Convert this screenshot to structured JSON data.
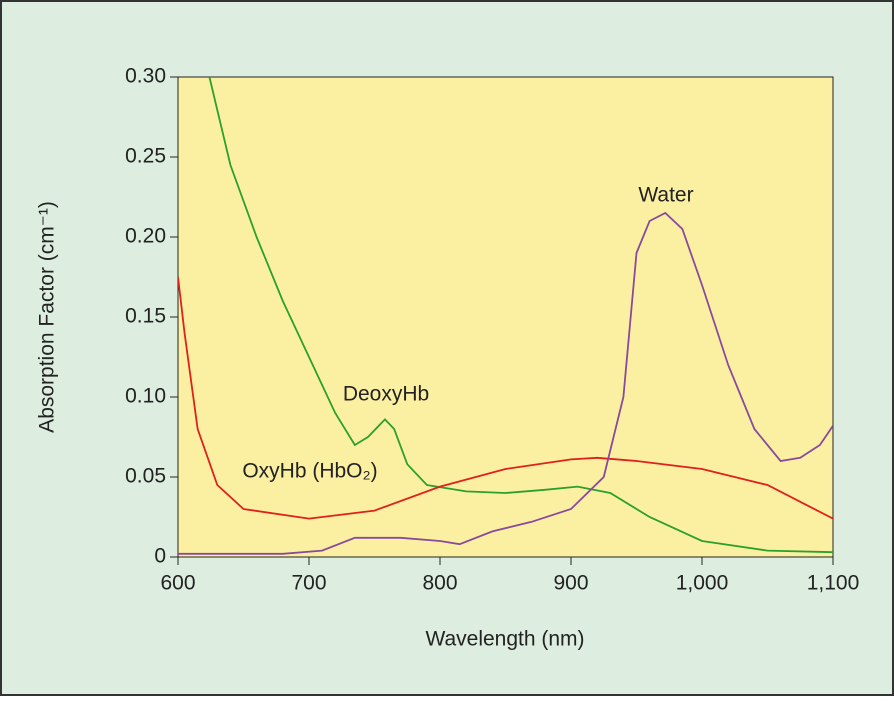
{
  "chart_data": {
    "type": "line",
    "xlabel": "Wavelength (nm)",
    "ylabel": "Absorption Factor (cm⁻¹)",
    "xlim": [
      600,
      1100
    ],
    "ylim": [
      0,
      0.3
    ],
    "xticks": [
      600,
      700,
      800,
      900,
      {
        "value": 1000,
        "label": "1,000"
      },
      {
        "value": 1100,
        "label": "1,100"
      }
    ],
    "yticks": [
      0,
      0.05,
      {
        "value": 0.1,
        "label": "0.10"
      },
      0.15,
      {
        "value": 0.2,
        "label": "0.20"
      },
      0.25,
      {
        "value": 0.3,
        "label": "0.30"
      }
    ],
    "series": [
      {
        "name": "DeoxyHb",
        "color": "#2ca02c",
        "x": [
          624,
          640,
          660,
          680,
          700,
          720,
          735,
          745,
          758,
          765,
          775,
          790,
          820,
          850,
          880,
          905,
          930,
          960,
          1000,
          1050,
          1100
        ],
        "values": [
          0.3,
          0.245,
          0.2,
          0.16,
          0.125,
          0.09,
          0.07,
          0.075,
          0.086,
          0.08,
          0.058,
          0.045,
          0.041,
          0.04,
          0.042,
          0.044,
          0.04,
          0.025,
          0.01,
          0.004,
          0.003
        ]
      },
      {
        "name": "OxyHb (HbO₂)",
        "color": "#e0201c",
        "x": [
          600,
          605,
          615,
          630,
          650,
          700,
          750,
          800,
          850,
          900,
          920,
          950,
          1000,
          1050,
          1100
        ],
        "values": [
          0.175,
          0.14,
          0.08,
          0.045,
          0.03,
          0.024,
          0.029,
          0.044,
          0.055,
          0.061,
          0.062,
          0.06,
          0.055,
          0.045,
          0.024
        ]
      },
      {
        "name": "Water",
        "color": "#8a4a9c",
        "x": [
          600,
          680,
          710,
          735,
          770,
          800,
          815,
          840,
          870,
          900,
          925,
          940,
          950,
          960,
          972,
          985,
          1000,
          1020,
          1040,
          1060,
          1075,
          1090,
          1100
        ],
        "values": [
          0.002,
          0.002,
          0.004,
          0.012,
          0.012,
          0.01,
          0.008,
          0.016,
          0.022,
          0.03,
          0.05,
          0.1,
          0.19,
          0.21,
          0.215,
          0.205,
          0.17,
          0.12,
          0.08,
          0.06,
          0.062,
          0.07,
          0.082
        ]
      }
    ]
  }
}
